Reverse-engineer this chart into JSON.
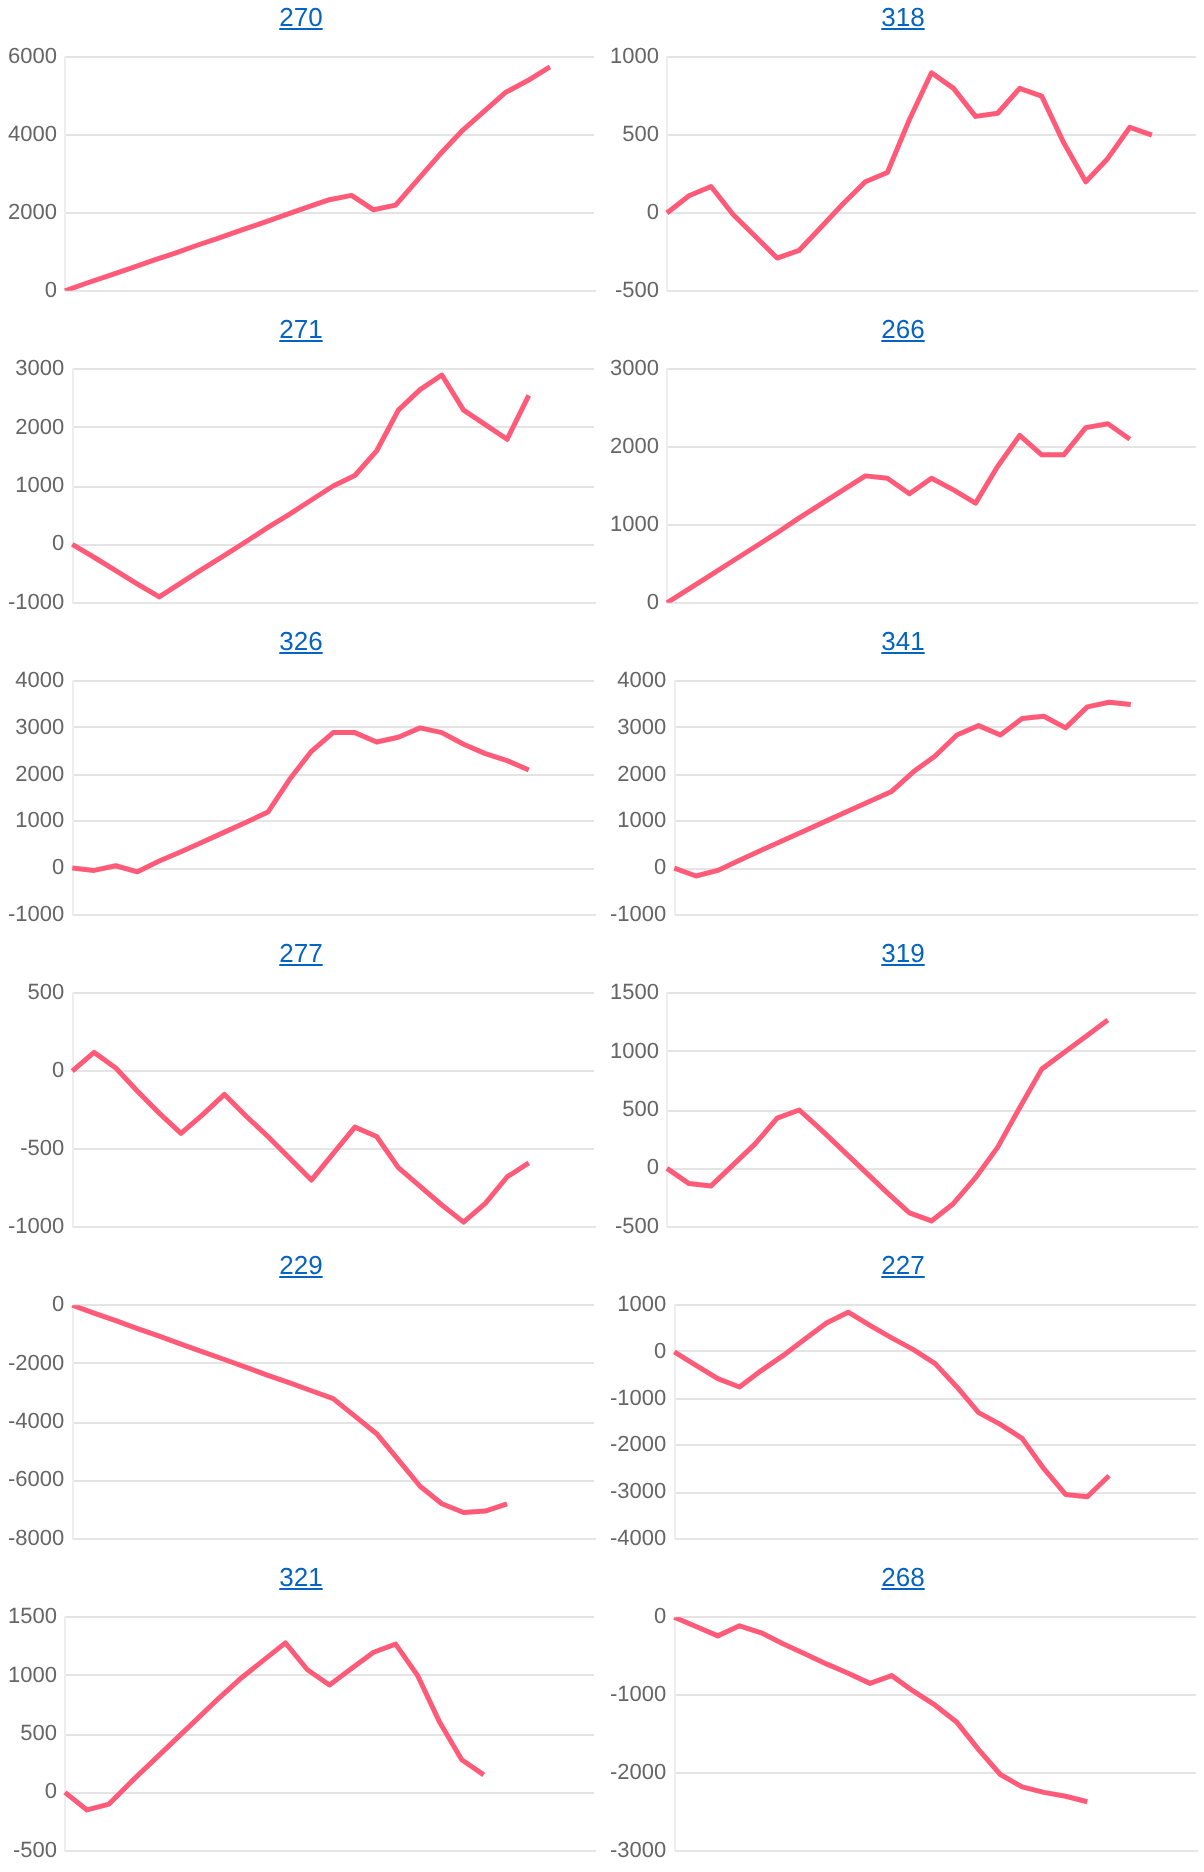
{
  "chart_data": [
    {
      "type": "line",
      "title": "270",
      "categories": [
        null,
        null,
        null,
        null,
        null,
        null,
        null,
        null,
        null,
        null,
        null,
        null,
        null,
        null,
        null,
        null,
        null,
        null,
        null,
        null,
        null,
        null,
        null,
        null,
        null
      ],
      "series": [
        {
          "color": "#ff5a78",
          "values": [
            0,
            200,
            390,
            580,
            780,
            970,
            1170,
            1360,
            1560,
            1750,
            1950,
            2150,
            2340,
            2450,
            2080,
            2200,
            2850,
            3500,
            4100,
            4600,
            5100,
            5400,
            5750,
            null,
            null
          ]
        }
      ],
      "ylim": [
        0,
        6000
      ],
      "yticks": [
        0,
        2000,
        4000,
        6000
      ],
      "grid": "y",
      "tick_labels": "y"
    },
    {
      "type": "line",
      "title": "318",
      "categories": [
        null,
        null,
        null,
        null,
        null,
        null,
        null,
        null,
        null,
        null,
        null,
        null,
        null,
        null,
        null,
        null,
        null,
        null,
        null,
        null,
        null,
        null,
        null,
        null,
        null
      ],
      "series": [
        {
          "color": "#ff5a78",
          "values": [
            0,
            110,
            170,
            -10,
            -150,
            -290,
            -240,
            -90,
            60,
            200,
            260,
            600,
            900,
            800,
            620,
            640,
            800,
            750,
            450,
            200,
            350,
            550,
            500,
            null,
            null
          ]
        }
      ],
      "ylim": [
        -500,
        1000
      ],
      "yticks": [
        -500,
        0,
        500,
        1000
      ],
      "grid": "y",
      "tick_labels": "y"
    },
    {
      "type": "line",
      "title": "271",
      "categories": [
        null,
        null,
        null,
        null,
        null,
        null,
        null,
        null,
        null,
        null,
        null,
        null,
        null,
        null,
        null,
        null,
        null,
        null,
        null,
        null,
        null,
        null,
        null,
        null,
        null
      ],
      "series": [
        {
          "color": "#ff5a78",
          "values": [
            0,
            -220,
            -450,
            -680,
            -900,
            -660,
            -420,
            -190,
            50,
            290,
            520,
            760,
            1000,
            1180,
            1600,
            2300,
            2650,
            2900,
            2300,
            2050,
            1800,
            2550,
            null,
            null,
            null
          ]
        }
      ],
      "ylim": [
        -1000,
        3000
      ],
      "yticks": [
        -1000,
        0,
        1000,
        2000,
        3000
      ],
      "grid": "y",
      "tick_labels": "y"
    },
    {
      "type": "line",
      "title": "266",
      "categories": [
        null,
        null,
        null,
        null,
        null,
        null,
        null,
        null,
        null,
        null,
        null,
        null,
        null,
        null,
        null,
        null,
        null,
        null,
        null,
        null,
        null,
        null,
        null,
        null,
        null
      ],
      "series": [
        {
          "color": "#ff5a78",
          "values": [
            0,
            180,
            360,
            540,
            720,
            900,
            1090,
            1270,
            1450,
            1630,
            1600,
            1400,
            1600,
            1450,
            1280,
            1750,
            2150,
            1900,
            1900,
            2250,
            2300,
            2100,
            null,
            null,
            null
          ]
        }
      ],
      "ylim": [
        0,
        3000
      ],
      "yticks": [
        0,
        1000,
        2000,
        3000
      ],
      "grid": "y",
      "tick_labels": "y"
    },
    {
      "type": "line",
      "title": "326",
      "categories": [
        null,
        null,
        null,
        null,
        null,
        null,
        null,
        null,
        null,
        null,
        null,
        null,
        null,
        null,
        null,
        null,
        null,
        null,
        null,
        null,
        null,
        null,
        null,
        null,
        null
      ],
      "series": [
        {
          "color": "#ff5a78",
          "values": [
            0,
            -50,
            50,
            -80,
            150,
            350,
            560,
            770,
            980,
            1200,
            1900,
            2500,
            2900,
            2900,
            2700,
            2800,
            3000,
            2900,
            2650,
            2450,
            2300,
            2100,
            null,
            null,
            null
          ]
        }
      ],
      "ylim": [
        -1000,
        4000
      ],
      "yticks": [
        -1000,
        0,
        1000,
        2000,
        3000,
        4000
      ],
      "grid": "y",
      "tick_labels": "y"
    },
    {
      "type": "line",
      "title": "341",
      "categories": [
        null,
        null,
        null,
        null,
        null,
        null,
        null,
        null,
        null,
        null,
        null,
        null,
        null,
        null,
        null,
        null,
        null,
        null,
        null,
        null,
        null,
        null,
        null,
        null,
        null
      ],
      "series": [
        {
          "color": "#ff5a78",
          "values": [
            0,
            -170,
            -50,
            170,
            380,
            590,
            800,
            1010,
            1220,
            1430,
            1640,
            2060,
            2400,
            2850,
            3050,
            2850,
            3200,
            3250,
            3000,
            3450,
            3550,
            3500,
            null,
            null,
            null
          ]
        }
      ],
      "ylim": [
        -1000,
        4000
      ],
      "yticks": [
        -1000,
        0,
        1000,
        2000,
        3000,
        4000
      ],
      "grid": "y",
      "tick_labels": "y"
    },
    {
      "type": "line",
      "title": "277",
      "categories": [
        null,
        null,
        null,
        null,
        null,
        null,
        null,
        null,
        null,
        null,
        null,
        null,
        null,
        null,
        null,
        null,
        null,
        null,
        null,
        null,
        null,
        null,
        null,
        null,
        null
      ],
      "series": [
        {
          "color": "#ff5a78",
          "values": [
            0,
            120,
            20,
            -130,
            -270,
            -400,
            -280,
            -150,
            -290,
            -420,
            -560,
            -700,
            -530,
            -360,
            -420,
            -620,
            -740,
            -860,
            -970,
            -850,
            -680,
            -590,
            null,
            null,
            null
          ]
        }
      ],
      "ylim": [
        -1000,
        500
      ],
      "yticks": [
        -1000,
        -500,
        0,
        500
      ],
      "grid": "y",
      "tick_labels": "y"
    },
    {
      "type": "line",
      "title": "319",
      "categories": [
        null,
        null,
        null,
        null,
        null,
        null,
        null,
        null,
        null,
        null,
        null,
        null,
        null,
        null,
        null,
        null,
        null,
        null,
        null,
        null,
        null,
        null,
        null,
        null,
        null
      ],
      "series": [
        {
          "color": "#ff5a78",
          "values": [
            0,
            -130,
            -150,
            30,
            210,
            430,
            500,
            330,
            150,
            -30,
            -210,
            -380,
            -450,
            -300,
            -80,
            180,
            520,
            850,
            990,
            1130,
            1270,
            null,
            null,
            null,
            null
          ]
        }
      ],
      "ylim": [
        -500,
        1500
      ],
      "yticks": [
        -500,
        0,
        500,
        1000,
        1500
      ],
      "grid": "y",
      "tick_labels": "y"
    },
    {
      "type": "line",
      "title": "229",
      "categories": [
        null,
        null,
        null,
        null,
        null,
        null,
        null,
        null,
        null,
        null,
        null,
        null,
        null,
        null,
        null,
        null,
        null,
        null,
        null,
        null,
        null,
        null,
        null,
        null,
        null
      ],
      "series": [
        {
          "color": "#ff5a78",
          "values": [
            0,
            -270,
            -530,
            -800,
            -1060,
            -1330,
            -1600,
            -1860,
            -2130,
            -2400,
            -2660,
            -2930,
            -3200,
            -3800,
            -4400,
            -5300,
            -6200,
            -6800,
            -7100,
            -7050,
            -6800,
            null,
            null,
            null,
            null
          ]
        }
      ],
      "ylim": [
        -8000,
        0
      ],
      "yticks": [
        -8000,
        -6000,
        -4000,
        -2000,
        0
      ],
      "grid": "y",
      "tick_labels": "y"
    },
    {
      "type": "line",
      "title": "227",
      "categories": [
        null,
        null,
        null,
        null,
        null,
        null,
        null,
        null,
        null,
        null,
        null,
        null,
        null,
        null,
        null,
        null,
        null,
        null,
        null,
        null,
        null,
        null,
        null,
        null,
        null
      ],
      "series": [
        {
          "color": "#ff5a78",
          "values": [
            0,
            -290,
            -570,
            -750,
            -400,
            -80,
            270,
            620,
            850,
            570,
            300,
            50,
            -250,
            -750,
            -1300,
            -1550,
            -1850,
            -2500,
            -3050,
            -3100,
            -2650,
            null,
            null,
            null,
            null
          ]
        }
      ],
      "ylim": [
        -4000,
        1000
      ],
      "yticks": [
        -4000,
        -3000,
        -2000,
        -1000,
        0,
        1000
      ],
      "grid": "y",
      "tick_labels": "y"
    },
    {
      "type": "line",
      "title": "321",
      "categories": [
        null,
        null,
        null,
        null,
        null,
        null,
        null,
        null,
        null,
        null,
        null,
        null,
        null,
        null,
        null,
        null,
        null,
        null,
        null,
        null,
        null,
        null,
        null,
        null,
        null
      ],
      "series": [
        {
          "color": "#ff5a78",
          "values": [
            0,
            -150,
            -100,
            90,
            270,
            450,
            630,
            810,
            980,
            1130,
            1280,
            1050,
            920,
            1060,
            1200,
            1270,
            1000,
            600,
            280,
            150,
            null,
            null,
            null,
            null,
            null
          ]
        }
      ],
      "ylim": [
        -500,
        1500
      ],
      "yticks": [
        -500,
        0,
        500,
        1000,
        1500
      ],
      "grid": "y",
      "tick_labels": "y"
    },
    {
      "type": "line",
      "title": "268",
      "categories": [
        null,
        null,
        null,
        null,
        null,
        null,
        null,
        null,
        null,
        null,
        null,
        null,
        null,
        null,
        null,
        null,
        null,
        null,
        null,
        null,
        null,
        null,
        null,
        null,
        null
      ],
      "series": [
        {
          "color": "#ff5a78",
          "values": [
            0,
            -120,
            -240,
            -110,
            -200,
            -340,
            -470,
            -600,
            -720,
            -850,
            -750,
            -950,
            -1130,
            -1350,
            -1700,
            -2020,
            -2180,
            -2250,
            -2300,
            -2370,
            null,
            null,
            null,
            null,
            null
          ]
        }
      ],
      "ylim": [
        -3000,
        0
      ],
      "yticks": [
        -3000,
        -2000,
        -1000,
        0
      ],
      "grid": "y",
      "tick_labels": "y"
    }
  ]
}
